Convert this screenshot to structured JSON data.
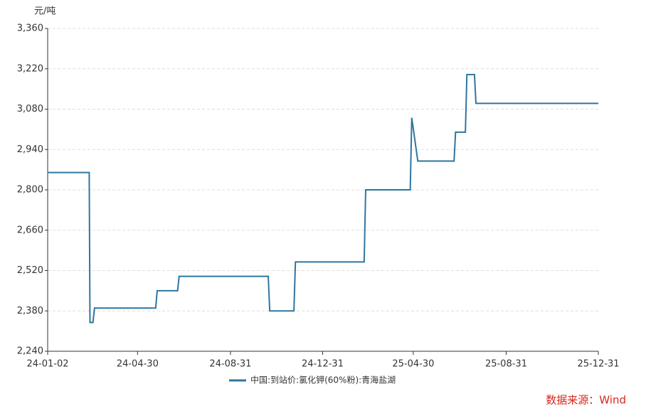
{
  "chart_data": {
    "type": "line",
    "unit": "元/吨",
    "source": "数据来源：Wind",
    "x": [
      "2024-01-02",
      "2024-02-26",
      "2024-02-27",
      "2024-03-02",
      "2024-03-04",
      "2024-05-24",
      "2024-05-26",
      "2024-06-22",
      "2024-06-24",
      "2024-10-20",
      "2024-10-22",
      "2024-11-23",
      "2024-11-25",
      "2025-02-24",
      "2025-02-26",
      "2025-04-26",
      "2025-04-28",
      "2025-05-06",
      "2025-06-23",
      "2025-06-25",
      "2025-07-08",
      "2025-07-10",
      "2025-07-20",
      "2025-07-22",
      "2025-12-31"
    ],
    "series": [
      {
        "name": "中国:到站价:氯化钾(60%粉):青海盐湖",
        "color": "#2e76a0",
        "values": [
          2860,
          2860,
          2340,
          2340,
          2390,
          2390,
          2450,
          2450,
          2500,
          2500,
          2380,
          2380,
          2550,
          2550,
          2800,
          2800,
          3050,
          2900,
          2900,
          3000,
          3000,
          3200,
          3200,
          3100,
          3100
        ]
      }
    ],
    "xlim": [
      "2024-01-02",
      "2025-12-31"
    ],
    "xticks": [
      {
        "value": "2024-01-02",
        "label": "24-01-02"
      },
      {
        "value": "2024-04-30",
        "label": "24-04-30"
      },
      {
        "value": "2024-08-31",
        "label": "24-08-31"
      },
      {
        "value": "2024-12-31",
        "label": "24-12-31"
      },
      {
        "value": "2025-04-30",
        "label": "25-04-30"
      },
      {
        "value": "2025-08-31",
        "label": "25-08-31"
      },
      {
        "value": "2025-12-31",
        "label": "25-12-31"
      }
    ],
    "ylim": [
      2240,
      3360
    ],
    "yticks": [
      {
        "value": 2240,
        "label": "2,240"
      },
      {
        "value": 2380,
        "label": "2,380"
      },
      {
        "value": 2520,
        "label": "2,520"
      },
      {
        "value": 2660,
        "label": "2,660"
      },
      {
        "value": 2800,
        "label": "2,800"
      },
      {
        "value": 2940,
        "label": "2,940"
      },
      {
        "value": 3080,
        "label": "3,080"
      },
      {
        "value": 3220,
        "label": "3,220"
      },
      {
        "value": 3360,
        "label": "3,360"
      }
    ],
    "grid": true
  }
}
